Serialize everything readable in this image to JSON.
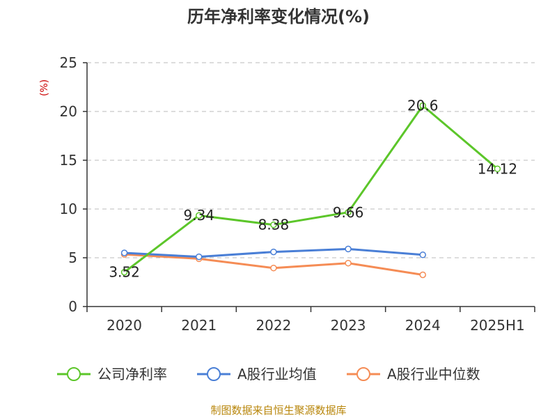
{
  "chart_data": {
    "type": "line",
    "title": "历年净利率变化情况(%)",
    "unit": "(%)",
    "categories": [
      "2020",
      "2021",
      "2022",
      "2023",
      "2024",
      "2025H1"
    ],
    "ylim": [
      0,
      25
    ],
    "yticks": [
      0,
      5,
      10,
      15,
      20,
      25
    ],
    "grid": true,
    "legend_position": "bottom",
    "series": [
      {
        "name": "公司净利率",
        "color": "#5cc62a",
        "values": [
          3.52,
          9.34,
          8.38,
          9.66,
          20.6,
          14.12
        ],
        "labels": [
          "3.52",
          "9.34",
          "8.38",
          "9.66",
          "20.6",
          "14.12"
        ]
      },
      {
        "name": "A股行业均值",
        "color": "#4a7fd6",
        "values": [
          5.5,
          5.1,
          5.6,
          5.9,
          5.3,
          null
        ]
      },
      {
        "name": "A股行业中位数",
        "color": "#f58c55",
        "values": [
          5.35,
          4.9,
          3.95,
          4.45,
          3.25,
          null
        ]
      }
    ],
    "source": "制图数据来自恒生聚源数据库"
  }
}
